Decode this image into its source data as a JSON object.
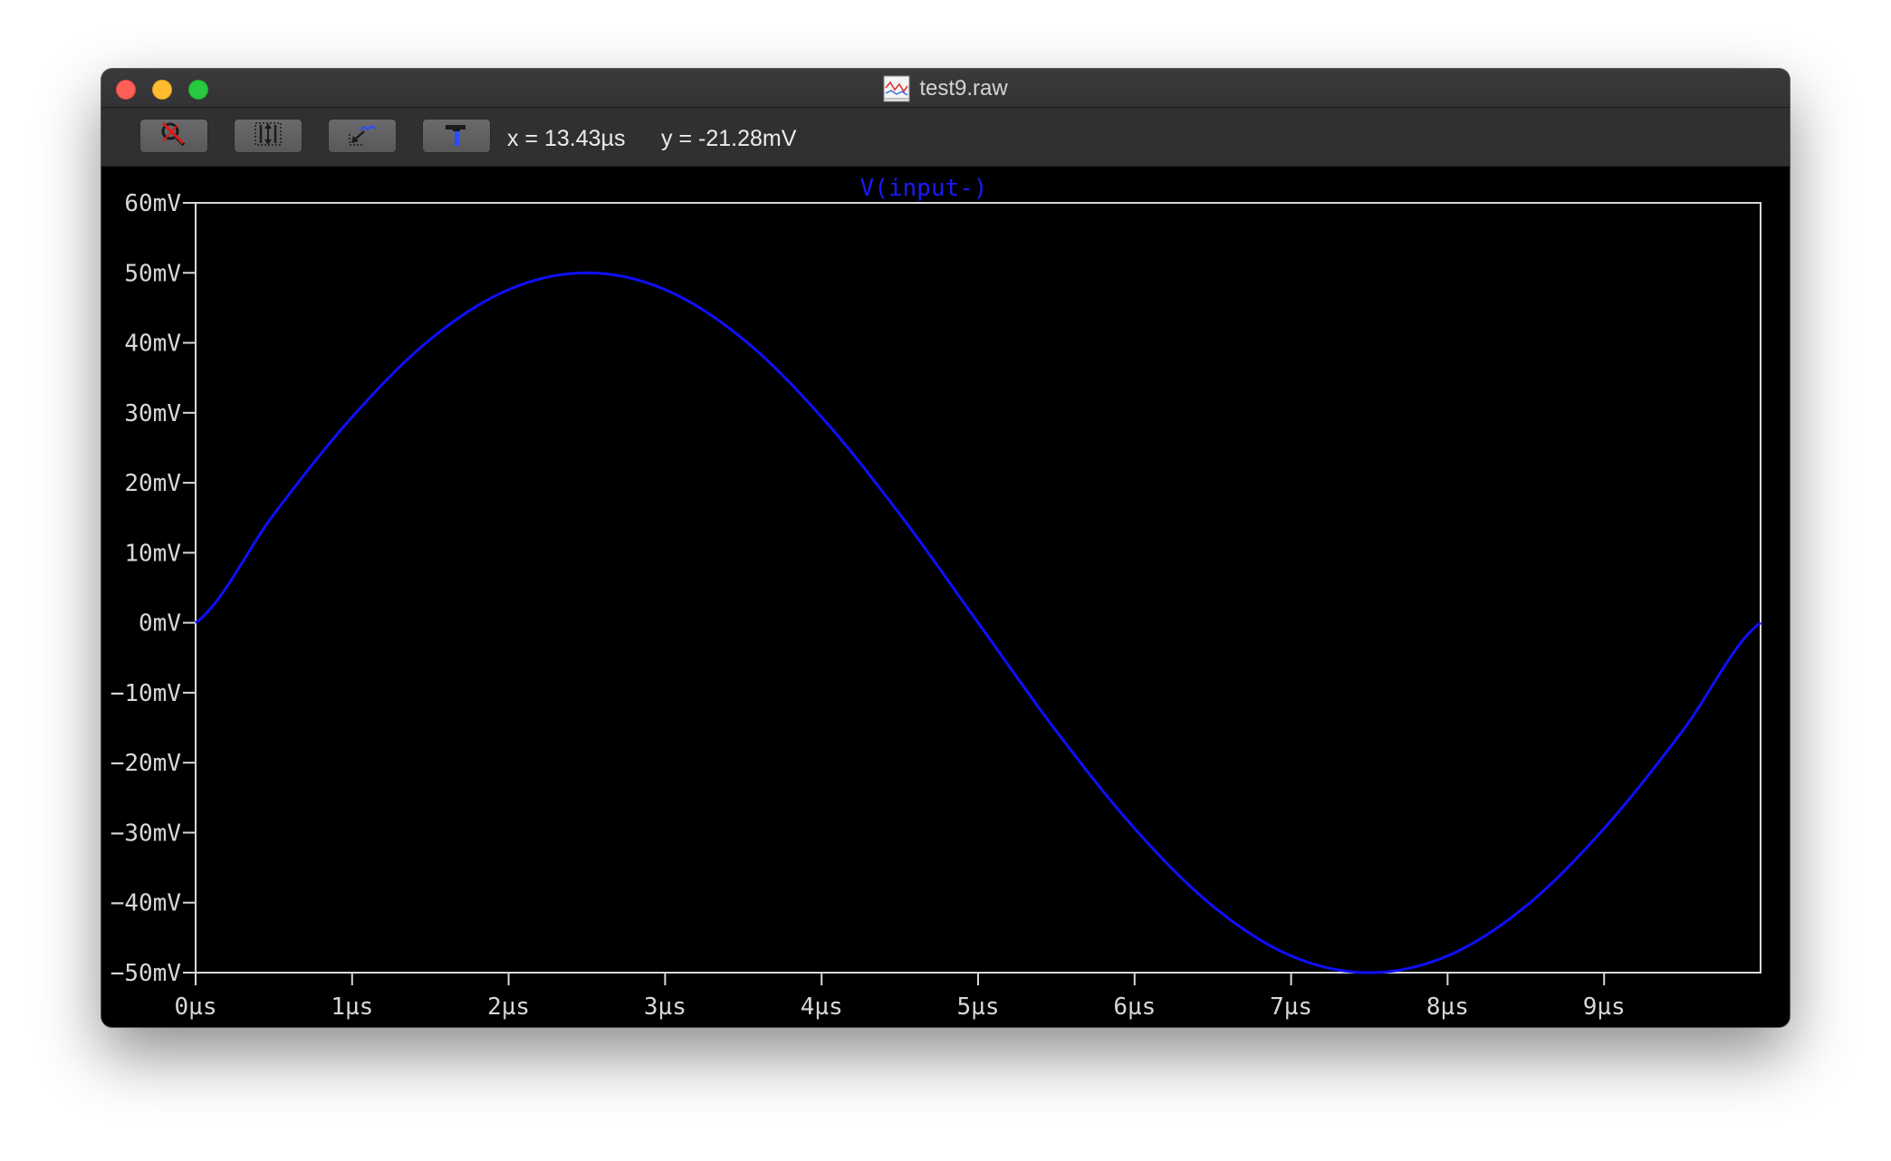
{
  "window": {
    "title": "test9.raw",
    "title_icon": "waveform-document-icon"
  },
  "toolbar": {
    "buttons": [
      {
        "name": "zoom-off-button",
        "icon": "magnifier-crossed-icon"
      },
      {
        "name": "autorange-y-button",
        "icon": "autorange-icon"
      },
      {
        "name": "zoom-to-fit-button",
        "icon": "zoom-fit-icon"
      },
      {
        "name": "hammer-button",
        "icon": "hammer-icon"
      }
    ],
    "x_readout": "x = 13.43µs",
    "y_readout": "y = -21.28mV"
  },
  "colors": {
    "trace": "#0f0fff",
    "grid_frame": "#d8d8d8",
    "background": "#000000"
  },
  "chart_data": {
    "type": "line",
    "title": "V(input-)",
    "xlabel": "",
    "ylabel": "",
    "xlim": [
      0,
      10
    ],
    "ylim": [
      -50,
      60
    ],
    "x_ticks": [
      "0µs",
      "1µs",
      "2µs",
      "3µs",
      "4µs",
      "5µs",
      "6µs",
      "7µs",
      "8µs",
      "9µs"
    ],
    "y_ticks": [
      "60mV",
      "50mV",
      "40mV",
      "30mV",
      "20mV",
      "10mV",
      "0mV",
      "−10mV",
      "−20mV",
      "−30mV",
      "−40mV",
      "−50mV"
    ],
    "series": [
      {
        "name": "V(input-)",
        "x_unit": "µs",
        "y_unit": "mV",
        "x": [
          0,
          0.5,
          1,
          1.5,
          2,
          2.5,
          3,
          3.5,
          4,
          4.5,
          5,
          5.5,
          6,
          6.5,
          7,
          7.5,
          8,
          8.5,
          9,
          9.5,
          10
        ],
        "y": [
          0,
          15.5,
          29.4,
          40.5,
          47.6,
          50,
          47.6,
          40.5,
          29.4,
          15.5,
          0,
          -15.5,
          -29.4,
          -40.5,
          -47.6,
          -50,
          -47.6,
          -40.5,
          -29.4,
          -15.5,
          0
        ]
      }
    ]
  }
}
